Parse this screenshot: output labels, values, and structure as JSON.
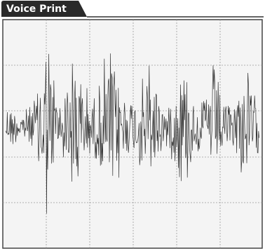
{
  "panel": {
    "title": "Voice Print"
  }
}
